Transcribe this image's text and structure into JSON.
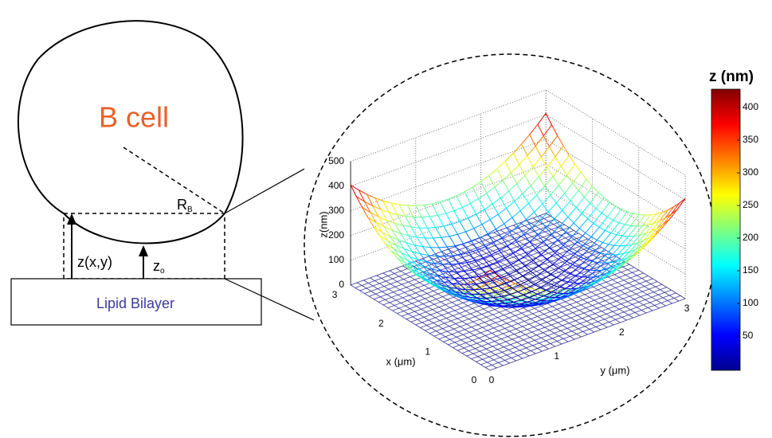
{
  "cell": {
    "label": "B cell",
    "radius": {
      "main": "R",
      "sub": "B"
    }
  },
  "heights": {
    "local": "z(x,y)",
    "min": {
      "main": "z",
      "sub": "o"
    }
  },
  "substrate": {
    "label": "Lipid Bilayer"
  },
  "plot": {
    "z_axis": {
      "label": "z(nm)",
      "ticks": [
        0,
        100,
        200,
        300,
        400,
        500
      ]
    },
    "x_axis": {
      "label": "x (μm)",
      "ticks": [
        0,
        1,
        2,
        3
      ]
    },
    "y_axis": {
      "label": "y (μm)",
      "ticks": [
        0,
        1,
        2,
        3
      ]
    }
  },
  "colorbar": {
    "title": "z (nm)",
    "ticks": [
      50,
      100,
      150,
      200,
      250,
      300,
      350,
      400
    ]
  }
}
